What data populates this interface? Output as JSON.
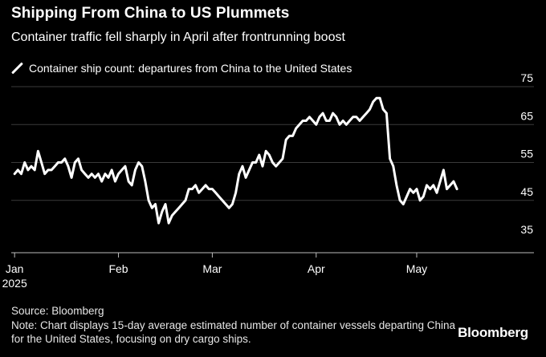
{
  "header": {
    "title": "Shipping From China to US Plummets",
    "subtitle": "Container traffic fell sharply in April after frontrunning boost"
  },
  "legend": {
    "label": "Container ship count: departures from China to the United States"
  },
  "footer": {
    "source": "Source: Bloomberg",
    "note": "Note: Chart displays 15-day average estimated number of container vessels departing China for the United States, focusing on dry cargo ships.",
    "brand": "Bloomberg"
  },
  "colors": {
    "background": "#000000",
    "line": "#ffffff",
    "grid": "#3a3a3a",
    "text": "#ffffff"
  },
  "chart_data": {
    "type": "line",
    "title": "Shipping From China to US Plummets",
    "subtitle": "Container traffic fell sharply in April after frontrunning boost",
    "xlabel": "",
    "ylabel": "",
    "ylim": [
      35,
      75
    ],
    "y_ticks": [
      35,
      45,
      55,
      65,
      75
    ],
    "y_axis_side": "right",
    "grid": true,
    "legend_position": "top-left",
    "x_ticks": [
      {
        "label": "Jan",
        "sublabel": "2025",
        "day": 0
      },
      {
        "label": "Feb",
        "sublabel": "",
        "day": 31
      },
      {
        "label": "Mar",
        "sublabel": "",
        "day": 59
      },
      {
        "label": "Apr",
        "sublabel": "",
        "day": 90
      },
      {
        "label": "May",
        "sublabel": "",
        "day": 120
      }
    ],
    "series": [
      {
        "name": "Container ship count: departures from China to the United States",
        "points": [
          [
            0,
            52
          ],
          [
            1,
            53
          ],
          [
            2,
            52
          ],
          [
            3,
            55
          ],
          [
            4,
            53
          ],
          [
            5,
            54
          ],
          [
            6,
            53
          ],
          [
            7,
            58
          ],
          [
            8,
            55
          ],
          [
            9,
            52
          ],
          [
            10,
            53
          ],
          [
            11,
            53
          ],
          [
            12,
            54
          ],
          [
            13,
            55
          ],
          [
            14,
            55
          ],
          [
            15,
            56
          ],
          [
            16,
            54
          ],
          [
            17,
            51
          ],
          [
            18,
            55
          ],
          [
            19,
            56
          ],
          [
            20,
            53
          ],
          [
            21,
            52
          ],
          [
            22,
            51
          ],
          [
            23,
            52
          ],
          [
            24,
            51
          ],
          [
            25,
            52
          ],
          [
            26,
            50
          ],
          [
            27,
            52
          ],
          [
            28,
            51
          ],
          [
            29,
            53
          ],
          [
            30,
            50
          ],
          [
            31,
            52
          ],
          [
            32,
            53
          ],
          [
            33,
            54
          ],
          [
            34,
            50
          ],
          [
            35,
            49
          ],
          [
            36,
            53
          ],
          [
            37,
            55
          ],
          [
            38,
            54
          ],
          [
            39,
            50
          ],
          [
            40,
            45
          ],
          [
            41,
            43
          ],
          [
            42,
            44
          ],
          [
            43,
            39
          ],
          [
            44,
            42
          ],
          [
            45,
            44
          ],
          [
            46,
            39
          ],
          [
            47,
            41
          ],
          [
            48,
            42
          ],
          [
            49,
            43
          ],
          [
            50,
            44
          ],
          [
            51,
            45
          ],
          [
            52,
            48
          ],
          [
            53,
            48
          ],
          [
            54,
            49
          ],
          [
            55,
            47
          ],
          [
            56,
            48
          ],
          [
            57,
            49
          ],
          [
            58,
            48
          ],
          [
            59,
            48
          ],
          [
            60,
            47
          ],
          [
            61,
            46
          ],
          [
            62,
            45
          ],
          [
            63,
            44
          ],
          [
            64,
            43
          ],
          [
            65,
            44
          ],
          [
            66,
            47
          ],
          [
            67,
            52
          ],
          [
            68,
            54
          ],
          [
            69,
            51
          ],
          [
            70,
            53
          ],
          [
            71,
            55
          ],
          [
            72,
            55
          ],
          [
            73,
            57
          ],
          [
            74,
            54
          ],
          [
            75,
            58
          ],
          [
            76,
            57
          ],
          [
            77,
            55
          ],
          [
            78,
            54
          ],
          [
            79,
            55
          ],
          [
            80,
            56
          ],
          [
            81,
            61
          ],
          [
            82,
            62
          ],
          [
            83,
            62
          ],
          [
            84,
            64
          ],
          [
            85,
            65
          ],
          [
            86,
            66
          ],
          [
            87,
            66
          ],
          [
            88,
            67
          ],
          [
            89,
            66
          ],
          [
            90,
            65
          ],
          [
            91,
            67
          ],
          [
            92,
            68
          ],
          [
            93,
            66
          ],
          [
            94,
            66
          ],
          [
            95,
            68
          ],
          [
            96,
            67
          ],
          [
            97,
            65
          ],
          [
            98,
            66
          ],
          [
            99,
            65
          ],
          [
            100,
            66
          ],
          [
            101,
            67
          ],
          [
            102,
            67
          ],
          [
            103,
            66
          ],
          [
            104,
            67
          ],
          [
            105,
            68
          ],
          [
            106,
            69
          ],
          [
            107,
            71
          ],
          [
            108,
            72
          ],
          [
            109,
            72
          ],
          [
            110,
            69
          ],
          [
            111,
            68
          ],
          [
            112,
            56
          ],
          [
            113,
            54
          ],
          [
            114,
            49
          ],
          [
            115,
            45
          ],
          [
            116,
            44
          ],
          [
            117,
            46
          ],
          [
            118,
            48
          ],
          [
            119,
            47
          ],
          [
            120,
            48
          ],
          [
            121,
            45
          ],
          [
            122,
            46
          ],
          [
            123,
            49
          ],
          [
            124,
            48
          ],
          [
            125,
            49
          ],
          [
            126,
            47
          ],
          [
            127,
            50
          ],
          [
            128,
            53
          ],
          [
            129,
            48
          ],
          [
            130,
            49
          ],
          [
            131,
            50
          ],
          [
            132,
            48
          ]
        ]
      }
    ],
    "x_domain_days": [
      -1,
      149
    ]
  }
}
